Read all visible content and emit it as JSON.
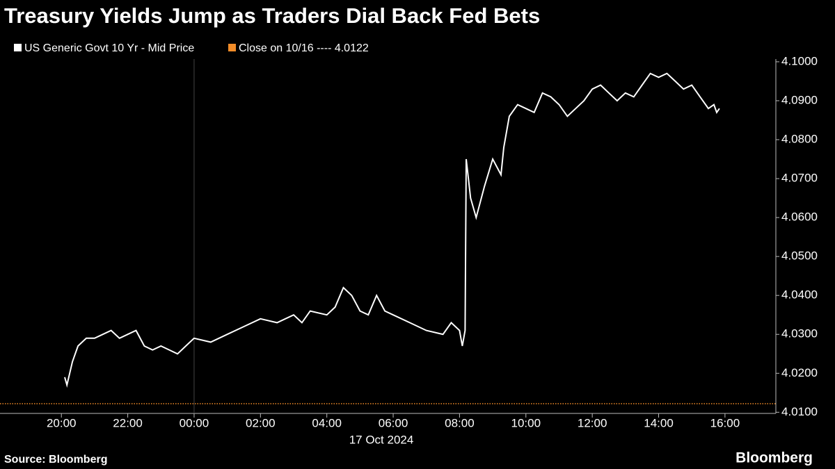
{
  "chart_data": {
    "type": "line",
    "title": "Treasury Yields Jump as Traders Dial Back Fed Bets",
    "source": "Source: Bloomberg",
    "brand": "Bloomberg",
    "date_label": "17 Oct 2024",
    "xlim": [
      "2024-10-16T18:09",
      "2024-10-17T17:32"
    ],
    "xticks": [
      {
        "value": "2024-10-16T20:00",
        "label": "20:00"
      },
      {
        "value": "2024-10-16T22:00",
        "label": "22:00"
      },
      {
        "value": "2024-10-17T00:00",
        "label": "00:00"
      },
      {
        "value": "2024-10-17T02:00",
        "label": "02:00"
      },
      {
        "value": "2024-10-17T04:00",
        "label": "04:00"
      },
      {
        "value": "2024-10-17T06:00",
        "label": "06:00"
      },
      {
        "value": "2024-10-17T08:00",
        "label": "08:00"
      },
      {
        "value": "2024-10-17T10:00",
        "label": "10:00"
      },
      {
        "value": "2024-10-17T12:00",
        "label": "12:00"
      },
      {
        "value": "2024-10-17T14:00",
        "label": "14:00"
      },
      {
        "value": "2024-10-17T16:00",
        "label": "16:00"
      }
    ],
    "date_separator": "2024-10-17T00:00",
    "ylim": [
      4.0097,
      4.1007
    ],
    "yticks": [
      {
        "value": 4.01,
        "label": "4.0100"
      },
      {
        "value": 4.02,
        "label": "4.0200"
      },
      {
        "value": 4.03,
        "label": "4.0300"
      },
      {
        "value": 4.04,
        "label": "4.0400"
      },
      {
        "value": 4.05,
        "label": "4.0500"
      },
      {
        "value": 4.06,
        "label": "4.0600"
      },
      {
        "value": 4.07,
        "label": "4.0700"
      },
      {
        "value": 4.08,
        "label": "4.0800"
      },
      {
        "value": 4.09,
        "label": "4.0900"
      },
      {
        "value": 4.1,
        "label": "4.1000"
      }
    ],
    "reference_line": {
      "value": 4.0122,
      "label": "Close on 10/16 ---- 4.0122",
      "color": "#f28c28"
    },
    "x": [
      "2024-10-16T20:06",
      "2024-10-16T20:10",
      "2024-10-16T20:20",
      "2024-10-16T20:30",
      "2024-10-16T20:45",
      "2024-10-16T21:00",
      "2024-10-16T21:15",
      "2024-10-16T21:30",
      "2024-10-16T21:45",
      "2024-10-16T22:00",
      "2024-10-16T22:15",
      "2024-10-16T22:30",
      "2024-10-16T22:45",
      "2024-10-16T23:00",
      "2024-10-16T23:15",
      "2024-10-16T23:30",
      "2024-10-16T23:45",
      "2024-10-17T00:00",
      "2024-10-17T00:30",
      "2024-10-17T01:00",
      "2024-10-17T01:30",
      "2024-10-17T02:00",
      "2024-10-17T02:30",
      "2024-10-17T03:00",
      "2024-10-17T03:15",
      "2024-10-17T03:30",
      "2024-10-17T04:00",
      "2024-10-17T04:15",
      "2024-10-17T04:30",
      "2024-10-17T04:45",
      "2024-10-17T05:00",
      "2024-10-17T05:15",
      "2024-10-17T05:30",
      "2024-10-17T05:45",
      "2024-10-17T06:00",
      "2024-10-17T06:30",
      "2024-10-17T07:00",
      "2024-10-17T07:30",
      "2024-10-17T07:45",
      "2024-10-17T08:00",
      "2024-10-17T08:05",
      "2024-10-17T08:10",
      "2024-10-17T08:12",
      "2024-10-17T08:20",
      "2024-10-17T08:30",
      "2024-10-17T08:45",
      "2024-10-17T09:00",
      "2024-10-17T09:15",
      "2024-10-17T09:20",
      "2024-10-17T09:30",
      "2024-10-17T09:45",
      "2024-10-17T10:00",
      "2024-10-17T10:15",
      "2024-10-17T10:30",
      "2024-10-17T10:45",
      "2024-10-17T11:00",
      "2024-10-17T11:15",
      "2024-10-17T11:30",
      "2024-10-17T11:45",
      "2024-10-17T12:00",
      "2024-10-17T12:15",
      "2024-10-17T12:30",
      "2024-10-17T12:45",
      "2024-10-17T13:00",
      "2024-10-17T13:15",
      "2024-10-17T13:30",
      "2024-10-17T13:45",
      "2024-10-17T14:00",
      "2024-10-17T14:15",
      "2024-10-17T14:30",
      "2024-10-17T14:45",
      "2024-10-17T15:00",
      "2024-10-17T15:15",
      "2024-10-17T15:30",
      "2024-10-17T15:40",
      "2024-10-17T15:45",
      "2024-10-17T15:50"
    ],
    "series": [
      {
        "name": "US Generic Govt 10 Yr - Mid Price",
        "color": "#ffffff",
        "values": [
          4.019,
          4.017,
          4.023,
          4.027,
          4.029,
          4.029,
          4.03,
          4.031,
          4.029,
          4.03,
          4.031,
          4.027,
          4.026,
          4.027,
          4.026,
          4.025,
          4.027,
          4.029,
          4.028,
          4.03,
          4.032,
          4.034,
          4.033,
          4.035,
          4.033,
          4.036,
          4.035,
          4.037,
          4.042,
          4.04,
          4.036,
          4.035,
          4.04,
          4.036,
          4.035,
          4.033,
          4.031,
          4.03,
          4.033,
          4.031,
          4.027,
          4.031,
          4.075,
          4.065,
          4.06,
          4.068,
          4.075,
          4.071,
          4.078,
          4.086,
          4.089,
          4.088,
          4.087,
          4.092,
          4.091,
          4.089,
          4.086,
          4.088,
          4.09,
          4.093,
          4.094,
          4.092,
          4.09,
          4.092,
          4.091,
          4.094,
          4.097,
          4.096,
          4.097,
          4.095,
          4.093,
          4.094,
          4.091,
          4.088,
          4.089,
          4.087,
          4.088
        ]
      }
    ]
  }
}
